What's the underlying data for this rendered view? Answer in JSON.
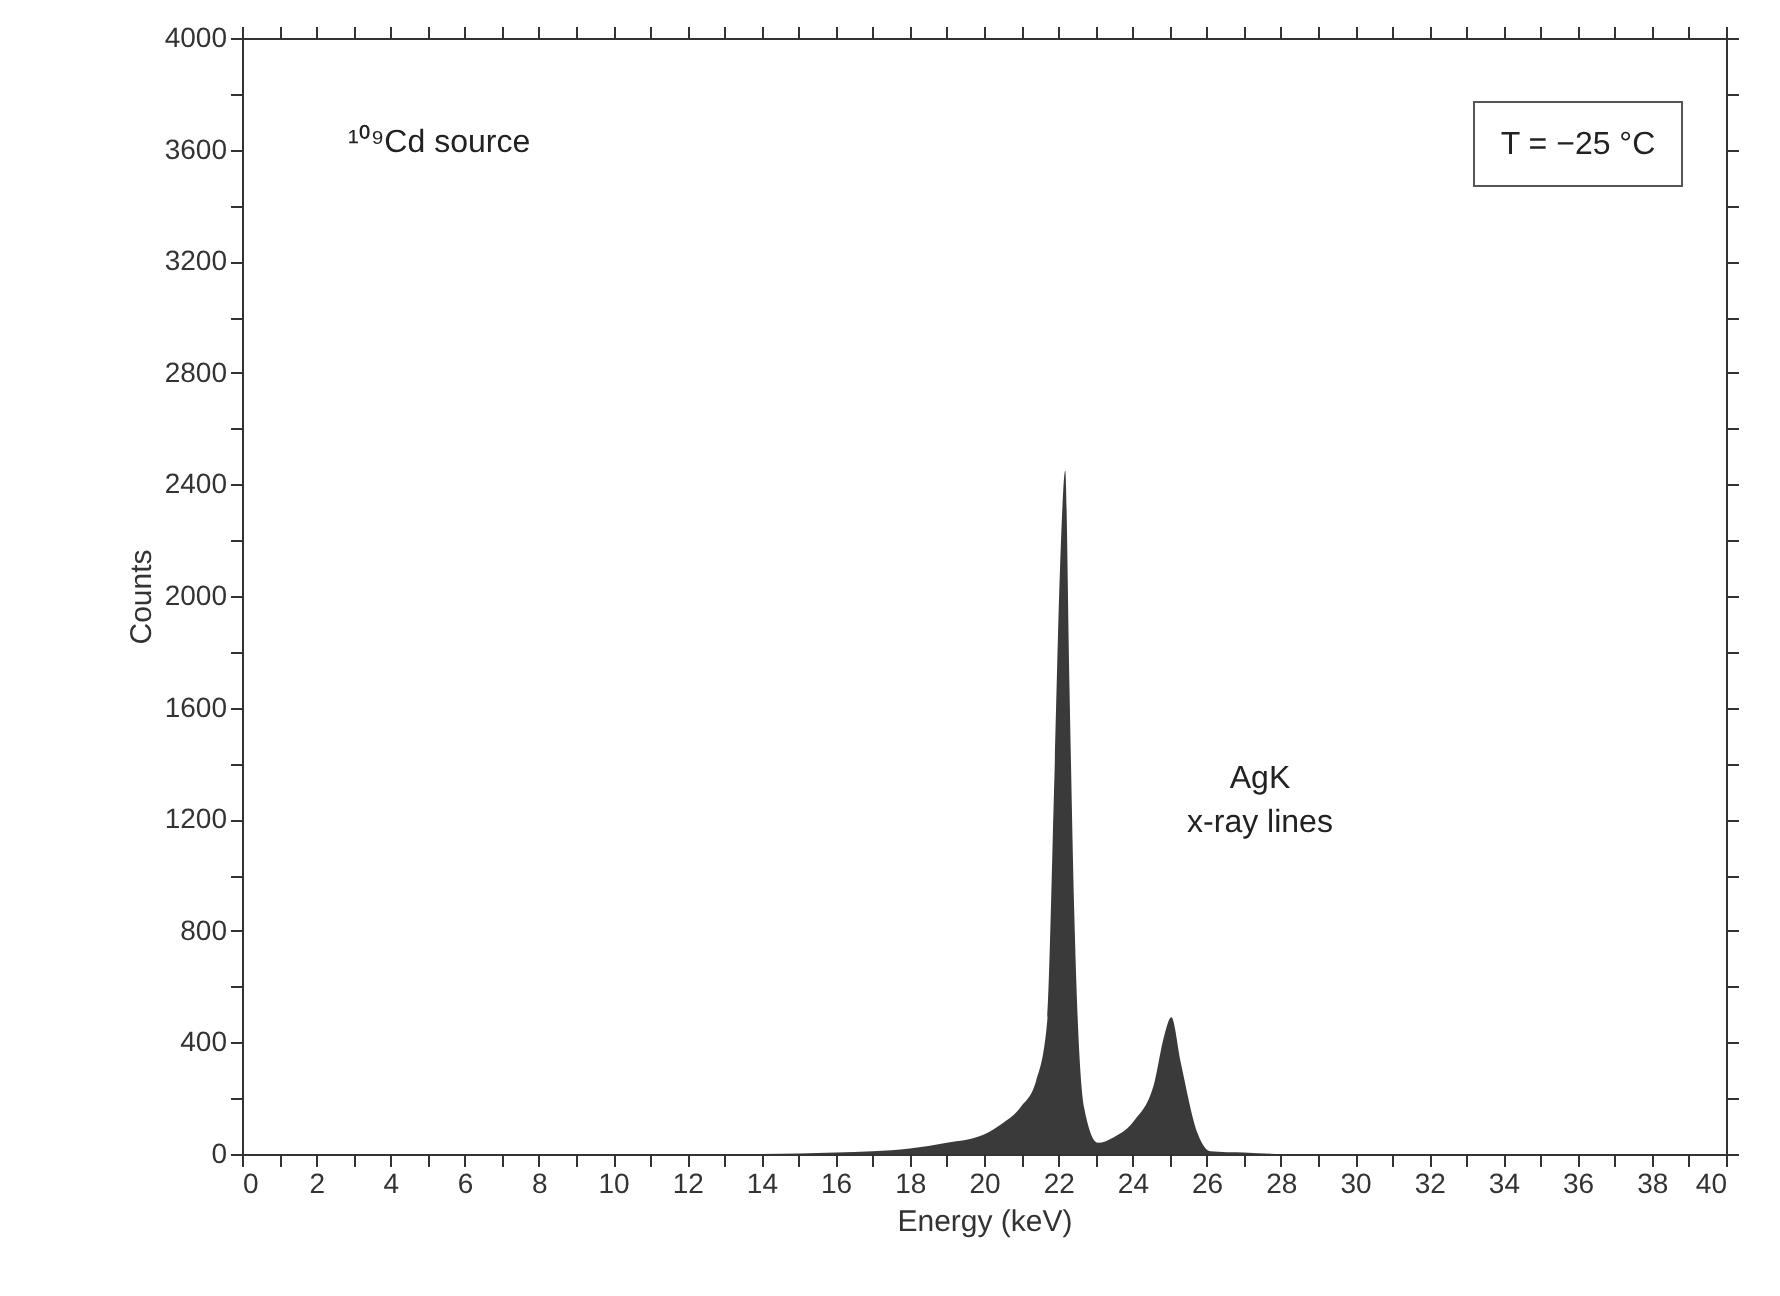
{
  "chart_data": {
    "type": "area",
    "xlabel": "Energy (keV)",
    "ylabel": "Counts",
    "x": [
      0,
      2,
      4,
      6,
      8,
      10,
      12,
      14,
      16,
      17,
      18,
      19,
      20,
      20.5,
      21,
      21.4,
      21.7,
      21.9,
      22.05,
      22.19,
      22.3,
      22.43,
      22.7,
      23.07,
      23.5,
      24.05,
      24.6,
      24.85,
      25.05,
      25.3,
      25.77,
      26.1,
      27,
      28,
      30,
      32,
      34,
      36,
      38,
      40
    ],
    "series": [
      {
        "color": "#3a3a3a",
        "values": [
          0,
          0,
          0,
          0,
          0,
          0,
          0,
          0,
          5,
          10,
          20,
          40,
          70,
          110,
          170,
          260,
          470,
          1360,
          2100,
          2450,
          1700,
          880,
          165,
          40,
          60,
          120,
          260,
          420,
          490,
          330,
          70,
          10,
          5,
          0,
          0,
          0,
          0,
          0,
          0,
          0
        ]
      }
    ],
    "xlim": [
      0,
      40
    ],
    "ylim": [
      0,
      4000
    ],
    "xticks": [
      0,
      {
        "value": 1,
        "label": null
      },
      2,
      {
        "value": 3,
        "label": null
      },
      4,
      {
        "value": 5,
        "label": null
      },
      6,
      {
        "value": 7,
        "label": null
      },
      8,
      {
        "value": 9,
        "label": null
      },
      10,
      {
        "value": 11,
        "label": null
      },
      12,
      {
        "value": 13,
        "label": null
      },
      14,
      {
        "value": 15,
        "label": null
      },
      16,
      {
        "value": 17,
        "label": null
      },
      18,
      {
        "value": 19,
        "label": null
      },
      20,
      {
        "value": 21,
        "label": null
      },
      22,
      {
        "value": 23,
        "label": null
      },
      24,
      {
        "value": 25,
        "label": null
      },
      26,
      {
        "value": 27,
        "label": null
      },
      28,
      {
        "value": 29,
        "label": null
      },
      30,
      {
        "value": 31,
        "label": null
      },
      32,
      {
        "value": 33,
        "label": null
      },
      34,
      {
        "value": 35,
        "label": null
      },
      36,
      {
        "value": 37,
        "label": null
      },
      38,
      {
        "value": 39,
        "label": null
      },
      40
    ],
    "yticks": [
      0,
      {
        "value": 200,
        "label": null
      },
      400,
      {
        "value": 600,
        "label": null
      },
      800,
      {
        "value": 1000,
        "label": null
      },
      1200,
      {
        "value": 1400,
        "label": null
      },
      1600,
      {
        "value": 1800,
        "label": null
      },
      2000,
      {
        "value": 2200,
        "label": null
      },
      2400,
      {
        "value": 2600,
        "label": null
      },
      2800,
      {
        "value": 3000,
        "label": null
      },
      3200,
      {
        "value": 3400,
        "label": null
      },
      3600,
      {
        "value": 3800,
        "label": null
      },
      4000
    ],
    "grid": false,
    "annotations": [
      "¹⁰⁹Cd source",
      "T = −25 °C",
      "AgK\nx-ray lines"
    ]
  }
}
